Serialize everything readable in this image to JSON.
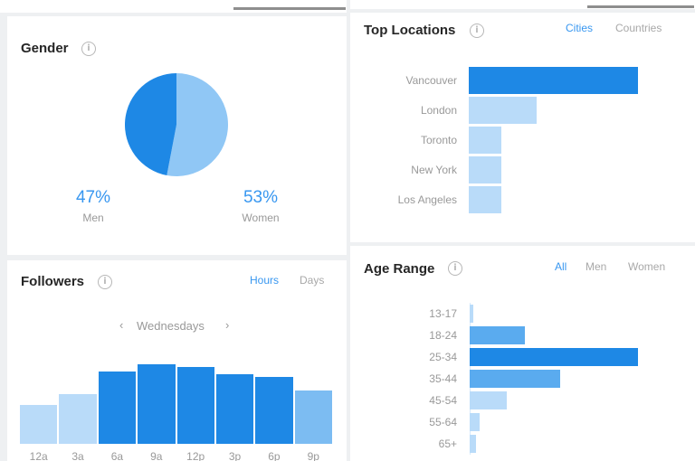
{
  "gender": {
    "title": "Gender",
    "men": {
      "percent": "47%",
      "label": "Men",
      "value": 47
    },
    "women": {
      "percent": "53%",
      "label": "Women",
      "value": 53
    },
    "colors": {
      "men": "#1e88e5",
      "women": "#90c7f5"
    }
  },
  "top_locations": {
    "title": "Top Locations",
    "tabs": [
      {
        "label": "Cities",
        "active": true
      },
      {
        "label": "Countries",
        "active": false
      }
    ],
    "items": [
      {
        "label": "Vancouver",
        "value": 100
      },
      {
        "label": "London",
        "value": 40
      },
      {
        "label": "Toronto",
        "value": 19
      },
      {
        "label": "New York",
        "value": 19
      },
      {
        "label": "Los Angeles",
        "value": 19
      }
    ]
  },
  "followers": {
    "title": "Followers",
    "tabs": [
      {
        "label": "Hours",
        "active": true
      },
      {
        "label": "Days",
        "active": false
      }
    ],
    "day_nav": {
      "prev": "‹",
      "label": "Wednesdays",
      "next": "›"
    },
    "chart_data": {
      "type": "bar",
      "categories": [
        "12a",
        "3a",
        "6a",
        "9a",
        "12p",
        "3p",
        "6p",
        "9p"
      ],
      "values": [
        43,
        55,
        80,
        88,
        85,
        77,
        74,
        59
      ],
      "ylim": [
        0,
        100
      ]
    }
  },
  "age_range": {
    "title": "Age Range",
    "tabs": [
      {
        "label": "All",
        "active": true
      },
      {
        "label": "Men",
        "active": false
      },
      {
        "label": "Women",
        "active": false
      }
    ],
    "chart_data": {
      "type": "bar",
      "categories": [
        "13-17",
        "18-24",
        "25-34",
        "35-44",
        "45-54",
        "55-64",
        "65+"
      ],
      "values": [
        2,
        33,
        100,
        54,
        22,
        6,
        4
      ],
      "xlim": [
        0,
        100
      ]
    }
  }
}
